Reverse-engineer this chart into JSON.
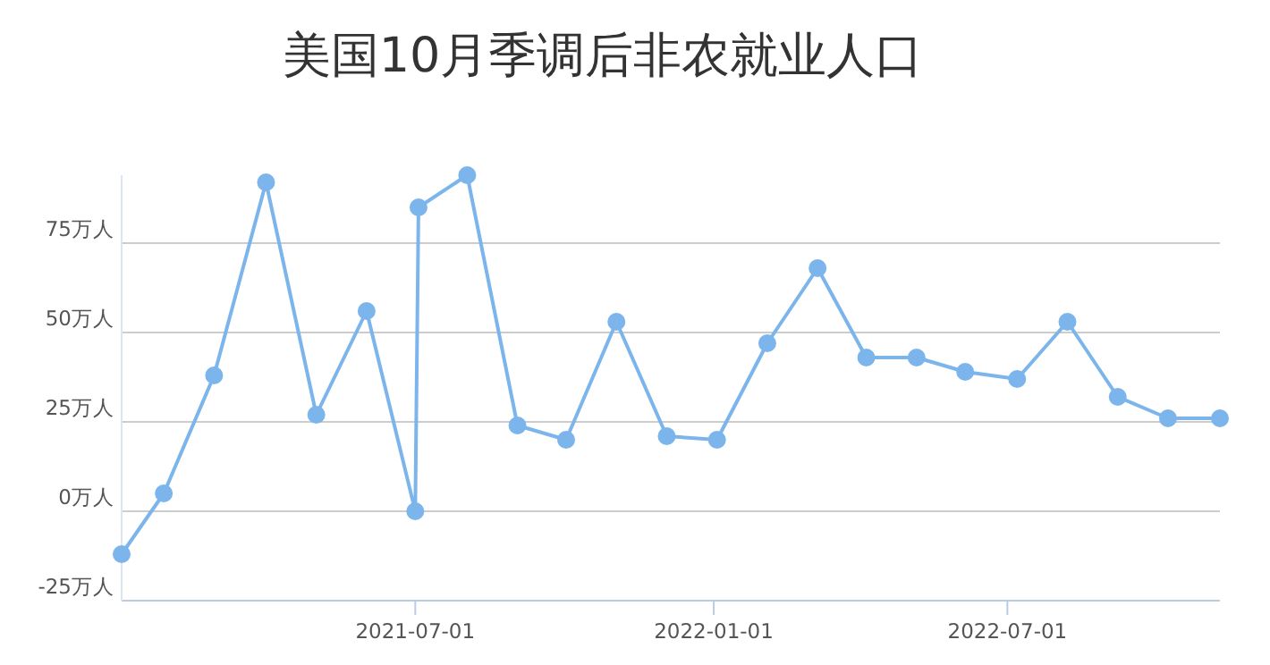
{
  "chart_data": {
    "type": "line",
    "title": "美国10月季调后非农就业人口",
    "x": [
      "2021-01-01",
      "2021-01-27",
      "2021-02-27",
      "2021-03-31",
      "2021-05-01",
      "2021-06-01",
      "2021-07-01",
      "2021-07-03",
      "2021-08-02",
      "2021-09-02",
      "2021-10-02",
      "2021-11-02",
      "2021-12-03",
      "2022-01-03",
      "2022-02-03",
      "2022-03-06",
      "2022-04-05",
      "2022-05-06",
      "2022-06-05",
      "2022-07-07",
      "2022-08-07",
      "2022-09-07",
      "2022-10-08",
      "2022-11-09"
    ],
    "values": [
      -12,
      5,
      38,
      92,
      27,
      56,
      0,
      85,
      94,
      24,
      20,
      53,
      21,
      20,
      47,
      68,
      43,
      43,
      39,
      37,
      53,
      32,
      26,
      26
    ],
    "color": "#7cb5ec",
    "marker": "circle",
    "line_style": "solid",
    "grid": "y",
    "xlim": [
      "2021-01-01",
      "2022-11-09"
    ],
    "xticks": [
      "2021-07-01",
      "2022-01-01",
      "2022-07-01"
    ],
    "ylim": [
      -25,
      94
    ],
    "yticks": [
      {
        "value": -25,
        "label": "-25万人"
      },
      {
        "value": 0,
        "label": "0万人"
      },
      {
        "value": 25,
        "label": "25万人"
      },
      {
        "value": 50,
        "label": "50万人"
      },
      {
        "value": 75,
        "label": "75万人"
      }
    ]
  }
}
